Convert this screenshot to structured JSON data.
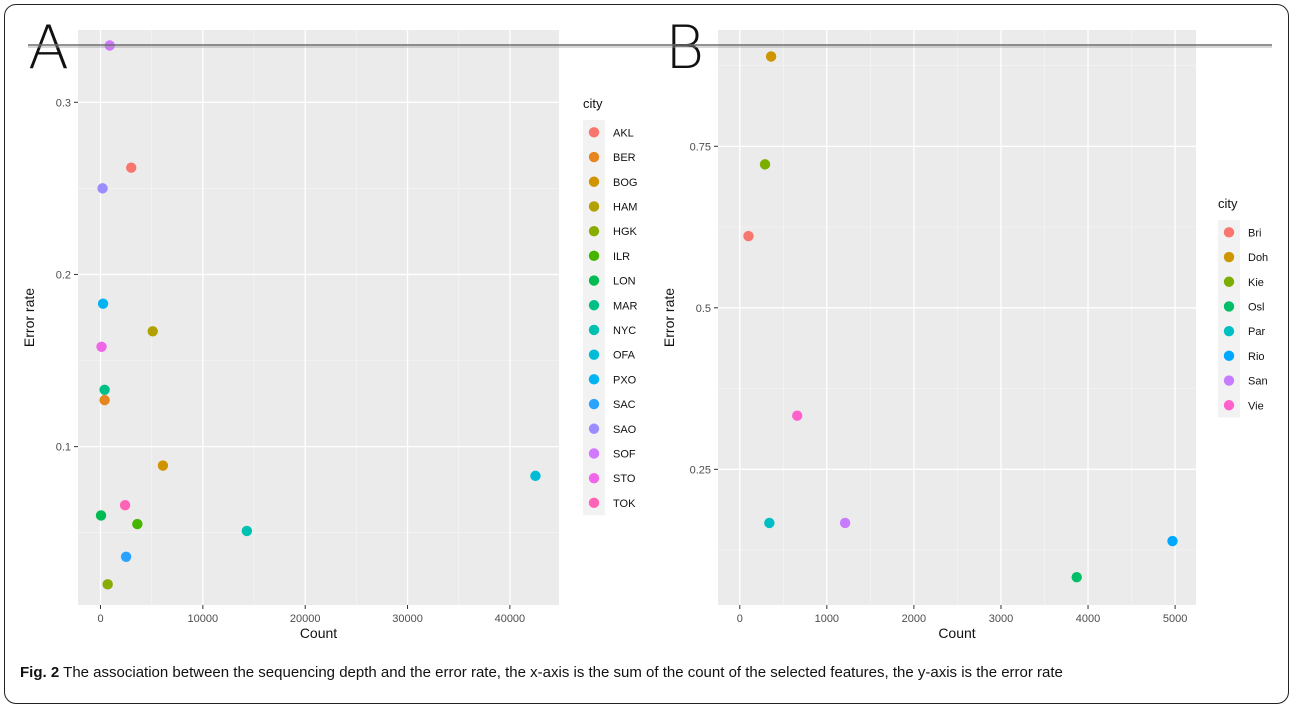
{
  "caption": {
    "label": "Fig. 2",
    "text": "The association between the sequencing depth and the error rate, the x-axis is the sum of the count of the selected features, the y-axis is the error rate"
  },
  "chart_data": [
    {
      "type": "scatter",
      "panel": "A",
      "xlabel": "Count",
      "ylabel": "Error rate",
      "xlim": [
        -2200,
        44800
      ],
      "ylim": [
        0.008,
        0.342
      ],
      "xticks": [
        0,
        10000,
        20000,
        30000,
        40000
      ],
      "yticks": [
        0.1,
        0.2,
        0.3
      ],
      "grid": true,
      "legend": {
        "title": "city",
        "placement": "right"
      },
      "series": [
        {
          "name": "AKL",
          "color": "#F8766D",
          "x": [
            3000
          ],
          "y": [
            0.262
          ]
        },
        {
          "name": "BER",
          "color": "#E7851E",
          "x": [
            400
          ],
          "y": [
            0.127
          ]
        },
        {
          "name": "BOG",
          "color": "#D09400",
          "x": [
            6100
          ],
          "y": [
            0.089
          ]
        },
        {
          "name": "HAM",
          "color": "#B2A100",
          "x": [
            5100
          ],
          "y": [
            0.167
          ]
        },
        {
          "name": "HGK",
          "color": "#89AC00",
          "x": [
            700
          ],
          "y": [
            0.02
          ]
        },
        {
          "name": "ILR",
          "color": "#45B500",
          "x": [
            3600
          ],
          "y": [
            0.055
          ]
        },
        {
          "name": "LON",
          "color": "#00BC51",
          "x": [
            50
          ],
          "y": [
            0.06
          ]
        },
        {
          "name": "MAR",
          "color": "#00C087",
          "x": [
            400
          ],
          "y": [
            0.133
          ]
        },
        {
          "name": "NYC",
          "color": "#00C0B2",
          "x": [
            14300
          ],
          "y": [
            0.051
          ]
        },
        {
          "name": "OFA",
          "color": "#00BCD6",
          "x": [
            42500
          ],
          "y": [
            0.083
          ]
        },
        {
          "name": "PXO",
          "color": "#00B3F2",
          "x": [
            250
          ],
          "y": [
            0.183
          ]
        },
        {
          "name": "SAC",
          "color": "#29A3FF",
          "x": [
            2500
          ],
          "y": [
            0.036
          ]
        },
        {
          "name": "SAO",
          "color": "#9C8DFF",
          "x": [
            200
          ],
          "y": [
            0.25
          ]
        },
        {
          "name": "SOF",
          "color": "#D277FF",
          "x": [
            900
          ],
          "y": [
            0.333
          ]
        },
        {
          "name": "STO",
          "color": "#F166E8",
          "x": [
            100
          ],
          "y": [
            0.158
          ]
        },
        {
          "name": "TOK",
          "color": "#FF63B6",
          "x": [
            2400
          ],
          "y": [
            0.066
          ]
        }
      ]
    },
    {
      "type": "scatter",
      "panel": "B",
      "xlabel": "Count",
      "ylabel": "Error rate",
      "xlim": [
        -250,
        5240
      ],
      "ylim": [
        0.04,
        0.93
      ],
      "xticks": [
        0,
        1000,
        2000,
        3000,
        4000,
        5000
      ],
      "yticks": [
        0.25,
        0.5,
        0.75
      ],
      "grid": true,
      "legend": {
        "title": "city",
        "placement": "right"
      },
      "series": [
        {
          "name": "Bri",
          "color": "#F8766D",
          "x": [
            100
          ],
          "y": [
            0.611
          ]
        },
        {
          "name": "Doh",
          "color": "#CD9600",
          "x": [
            360
          ],
          "y": [
            0.889
          ]
        },
        {
          "name": "Kie",
          "color": "#7CAE00",
          "x": [
            290
          ],
          "y": [
            0.722
          ]
        },
        {
          "name": "Osl",
          "color": "#00BE67",
          "x": [
            3870
          ],
          "y": [
            0.083
          ]
        },
        {
          "name": "Par",
          "color": "#00BFC4",
          "x": [
            340
          ],
          "y": [
            0.167
          ]
        },
        {
          "name": "Rio",
          "color": "#00A9FF",
          "x": [
            4970
          ],
          "y": [
            0.139
          ]
        },
        {
          "name": "San",
          "color": "#C77CFF",
          "x": [
            1210
          ],
          "y": [
            0.167
          ]
        },
        {
          "name": "Vie",
          "color": "#FF61CC",
          "x": [
            660
          ],
          "y": [
            0.333
          ]
        }
      ]
    }
  ]
}
